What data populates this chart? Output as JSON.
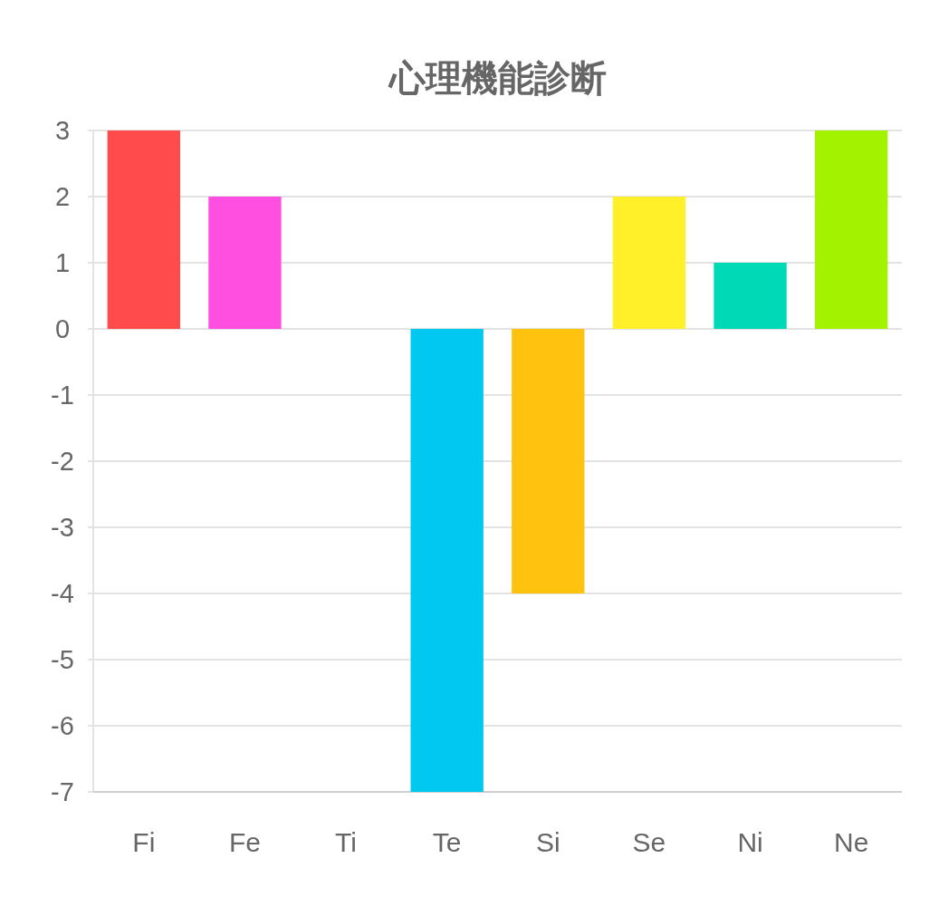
{
  "chart_data": {
    "type": "bar",
    "title": "心理機能診断",
    "categories": [
      "Fi",
      "Fe",
      "Ti",
      "Te",
      "Si",
      "Se",
      "Ni",
      "Ne"
    ],
    "values": [
      3,
      2,
      0,
      -7,
      -4,
      2,
      1,
      3
    ],
    "colors": [
      "#ff4b4b",
      "#ff4fe0",
      "#9e9e9e",
      "#00c8f0",
      "#ffc20e",
      "#fff02a",
      "#00d9b5",
      "#a3f200"
    ],
    "ylim": [
      -7,
      3
    ],
    "yticks": [
      -7,
      -6,
      -5,
      -4,
      -3,
      -2,
      -1,
      0,
      1,
      2,
      3
    ],
    "grid": "y"
  }
}
